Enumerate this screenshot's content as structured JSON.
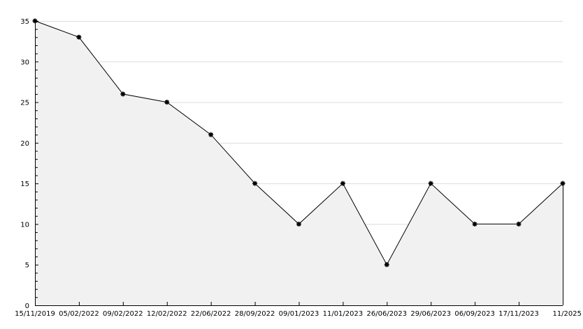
{
  "chart_data": {
    "type": "area",
    "categories": [
      "15/11/2019",
      "05/02/2022",
      "09/02/2022",
      "12/02/2022",
      "22/06/2022",
      "28/09/2022",
      "09/01/2023",
      "11/01/2023",
      "26/06/2023",
      "29/06/2023",
      "06/09/2023",
      "17/11/2023",
      "11/2025"
    ],
    "values": [
      35,
      33,
      26,
      25,
      21,
      15,
      10,
      15,
      5,
      15,
      10,
      10,
      15
    ],
    "yticks": [
      "0",
      "5",
      "10",
      "15",
      "20",
      "25",
      "30",
      "35"
    ],
    "ylim": [
      0,
      35
    ],
    "title": "",
    "xlabel": "",
    "ylabel": "",
    "grid": true,
    "colors": {
      "fill": "#f1f1f1",
      "line": "#000000",
      "grid": "#dddddd"
    }
  }
}
